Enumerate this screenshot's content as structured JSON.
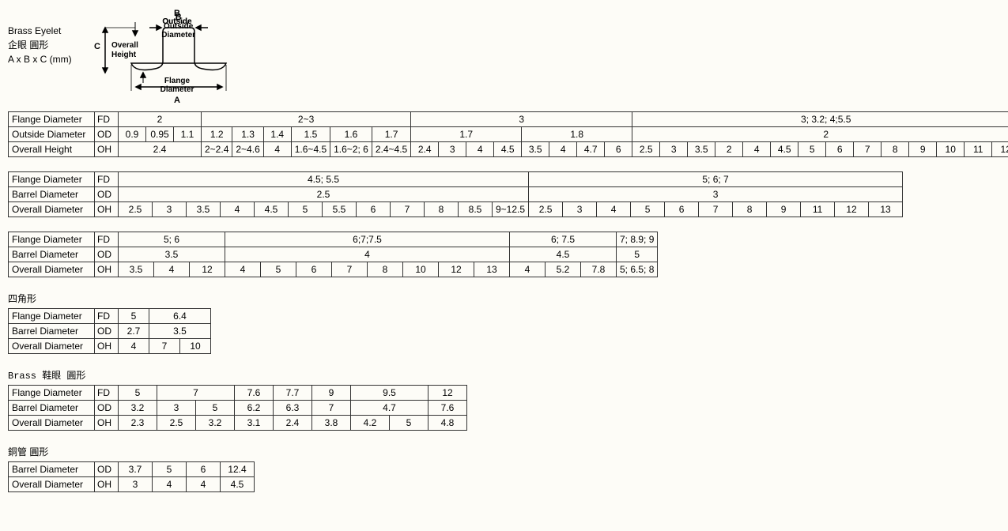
{
  "header": {
    "title1": "Brass Eyelet",
    "title2": "企眼  圓形",
    "title3": "A x B x C   (mm)"
  },
  "diagram": {
    "labels": {
      "B": "B",
      "outside": "Outside",
      "diameter": "Diameter",
      "C": "C",
      "overall": "Overall",
      "height": "Height",
      "flange": "Flange",
      "diameter2": "Diameter",
      "A": "A"
    }
  },
  "row_labels": {
    "fd": "Flange Diameter",
    "od": "Outside Diameter",
    "bd": "Barrel Diameter ",
    "oh": "Overall Height",
    "ohd": "Overall Diameter"
  },
  "codes": {
    "fd": "FD",
    "od": "OD",
    "oh": "OH"
  },
  "table1": {
    "fd": [
      "2",
      "2~3",
      "3",
      "3; 3.2; 4;5.5"
    ],
    "fd_span": [
      3,
      6,
      8,
      14
    ],
    "od": [
      "0.9",
      "0.95",
      "1.1",
      "1.2",
      "1.3",
      "1.4",
      "1.5",
      "1.6",
      "1.7",
      "1.7",
      "1.8",
      "2"
    ],
    "od_span": [
      1,
      1,
      1,
      1,
      1,
      1,
      1,
      1,
      1,
      4,
      4,
      14
    ],
    "oh": [
      "2.4",
      "2~2.4",
      "2~4.6",
      "4",
      "1.6~4.5",
      "1.6~2; 6",
      "2.4~4.5",
      "2.4",
      "3",
      "4",
      "4.5",
      "3.5",
      "4",
      "4.7",
      "6",
      "2.5",
      "3",
      "3.5",
      "2",
      "4",
      "4.5",
      "5",
      "6",
      "7",
      "8",
      "9",
      "10",
      "11",
      "12"
    ],
    "oh_span": [
      3,
      1,
      1,
      1,
      1,
      1,
      1,
      1,
      1,
      1,
      1,
      1,
      1,
      1,
      1,
      1,
      1,
      1,
      1,
      1,
      1,
      1,
      1,
      1,
      1,
      1,
      1,
      1,
      1
    ]
  },
  "table2": {
    "fd": [
      "4.5; 5.5",
      "5; 6; 7"
    ],
    "fd_span": [
      11,
      10
    ],
    "bd": [
      "2.5",
      "3"
    ],
    "bd_span": [
      11,
      10
    ],
    "oh": [
      "2.5",
      "3",
      "3.5",
      "4",
      "4.5",
      "5",
      "5.5",
      "6",
      "7",
      "8",
      "8.5",
      "9~12.5",
      "2.5",
      "3",
      "4",
      "5",
      "6",
      "7",
      "8",
      "9",
      "11",
      "12",
      "13"
    ],
    "oh_span": [
      1,
      1,
      1,
      1,
      1,
      1,
      1,
      1,
      1,
      1,
      1,
      1,
      1,
      1,
      1,
      1,
      1,
      1,
      1,
      1,
      1,
      1,
      1
    ],
    "oh_merge": [
      0,
      0,
      0,
      0,
      0,
      0,
      0,
      0,
      0,
      0,
      2,
      0,
      0,
      0,
      0,
      0,
      0,
      0,
      0,
      0,
      0,
      0,
      0
    ]
  },
  "table3": {
    "fd": [
      "5; 6",
      "6;7;7.5",
      "6; 7.5",
      "7; 8.9; 9"
    ],
    "fd_span": [
      3,
      8,
      3,
      1
    ],
    "bd": [
      "3.5",
      "4",
      "4.5",
      "5"
    ],
    "bd_span": [
      3,
      8,
      3,
      1
    ],
    "oh": [
      "3.5",
      "4",
      "12",
      "4",
      "5",
      "6",
      "7",
      "8",
      "10",
      "12",
      "13",
      "4",
      "5.2",
      "7.8",
      "5; 6.5; 8"
    ]
  },
  "section4_title": "四角形",
  "table4": {
    "fd": [
      "5",
      "6.4"
    ],
    "fd_span": [
      1,
      2
    ],
    "bd": [
      "2.7",
      "3.5"
    ],
    "bd_span": [
      1,
      2
    ],
    "oh": [
      "4",
      "7",
      "10"
    ]
  },
  "section5_title": "Brass  鞋眼    圓形",
  "table5": {
    "fd": [
      "5",
      "7",
      "7.6",
      "7.7",
      "9",
      "9.5",
      "12"
    ],
    "fd_span": [
      1,
      2,
      1,
      1,
      1,
      2,
      1
    ],
    "bd": [
      "3.2",
      "3",
      "5",
      "6.2",
      "6.3",
      "7",
      "4.7",
      "7.6"
    ],
    "bd_span": [
      1,
      1,
      1,
      1,
      1,
      1,
      2,
      1
    ],
    "oh": [
      "2.3",
      "2.5",
      "3.2",
      "3.1",
      "2.4",
      "3.8",
      "4.2",
      "5",
      "4.8"
    ]
  },
  "section6_title": "銅管    圓形",
  "table6": {
    "bd": [
      "3.7",
      "5",
      "6",
      "12.4"
    ],
    "oh": [
      "3",
      "4",
      "4",
      "4.5"
    ]
  },
  "style": {
    "cell_min_w_t1": 26,
    "cell_min_w_t2": 34,
    "cell_min_w_t3": 36,
    "cell_min_w_t4": 30,
    "cell_min_w_t5": 40,
    "cell_min_w_t6": 34
  }
}
